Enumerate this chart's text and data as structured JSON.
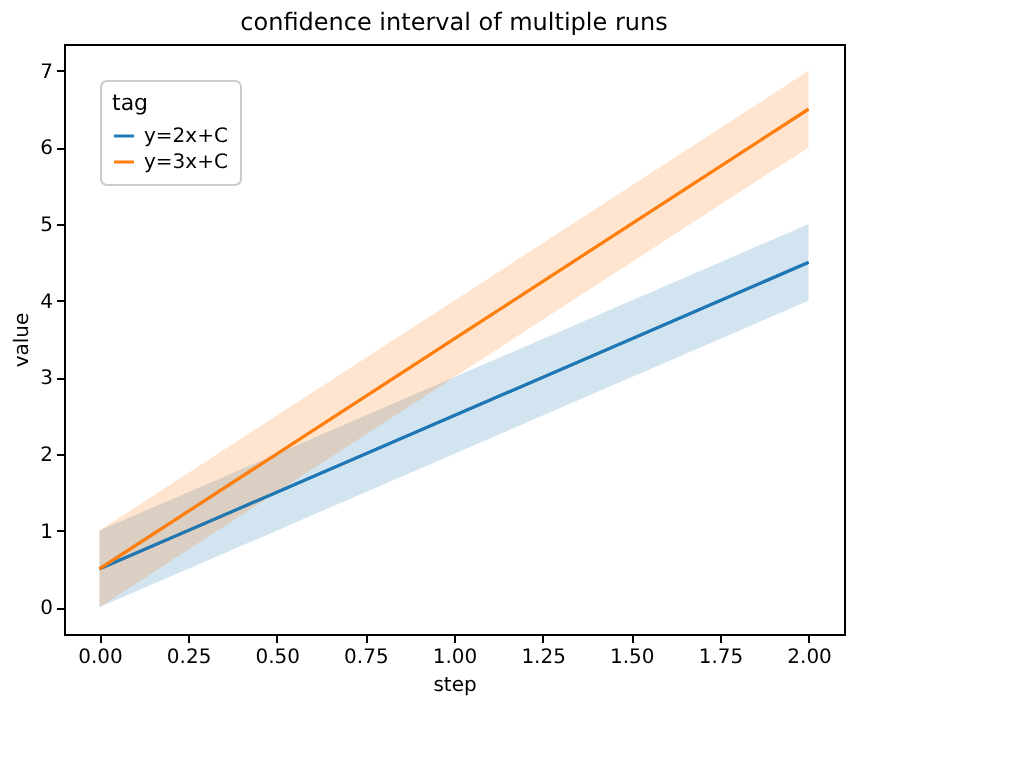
{
  "chart_data": {
    "type": "line",
    "title": "confidence interval of multiple runs",
    "xlabel": "step",
    "ylabel": "value",
    "legend_title": "tag",
    "legend": "top left",
    "grid": false,
    "x": [
      0,
      1,
      2
    ],
    "series": [
      {
        "name": "y=2x+C",
        "color": "#1f77b4",
        "values": [
          0.5,
          2.5,
          4.5
        ],
        "lower": [
          0,
          2,
          4
        ],
        "upper": [
          1,
          3,
          5
        ]
      },
      {
        "name": "y=3x+C",
        "color": "#ff7f0e",
        "values": [
          0.5,
          3.5,
          6.5
        ],
        "lower": [
          0,
          3,
          6
        ],
        "upper": [
          1,
          4,
          7
        ]
      }
    ],
    "xlim": [
      -0.1,
      2.1
    ],
    "ylim": [
      -0.35,
      7.35
    ],
    "xticks": [
      {
        "value": 0,
        "label": "0.00"
      },
      {
        "value": 0.25,
        "label": "0.25"
      },
      {
        "value": 0.5,
        "label": "0.50"
      },
      {
        "value": 0.75,
        "label": "0.75"
      },
      {
        "value": 1,
        "label": "1.00"
      },
      {
        "value": 1.25,
        "label": "1.25"
      },
      {
        "value": 1.5,
        "label": "1.50"
      },
      {
        "value": 1.75,
        "label": "1.75"
      },
      {
        "value": 2,
        "label": "2.00"
      }
    ],
    "yticks": [
      0,
      1,
      2,
      3,
      4,
      5,
      6,
      7
    ]
  }
}
